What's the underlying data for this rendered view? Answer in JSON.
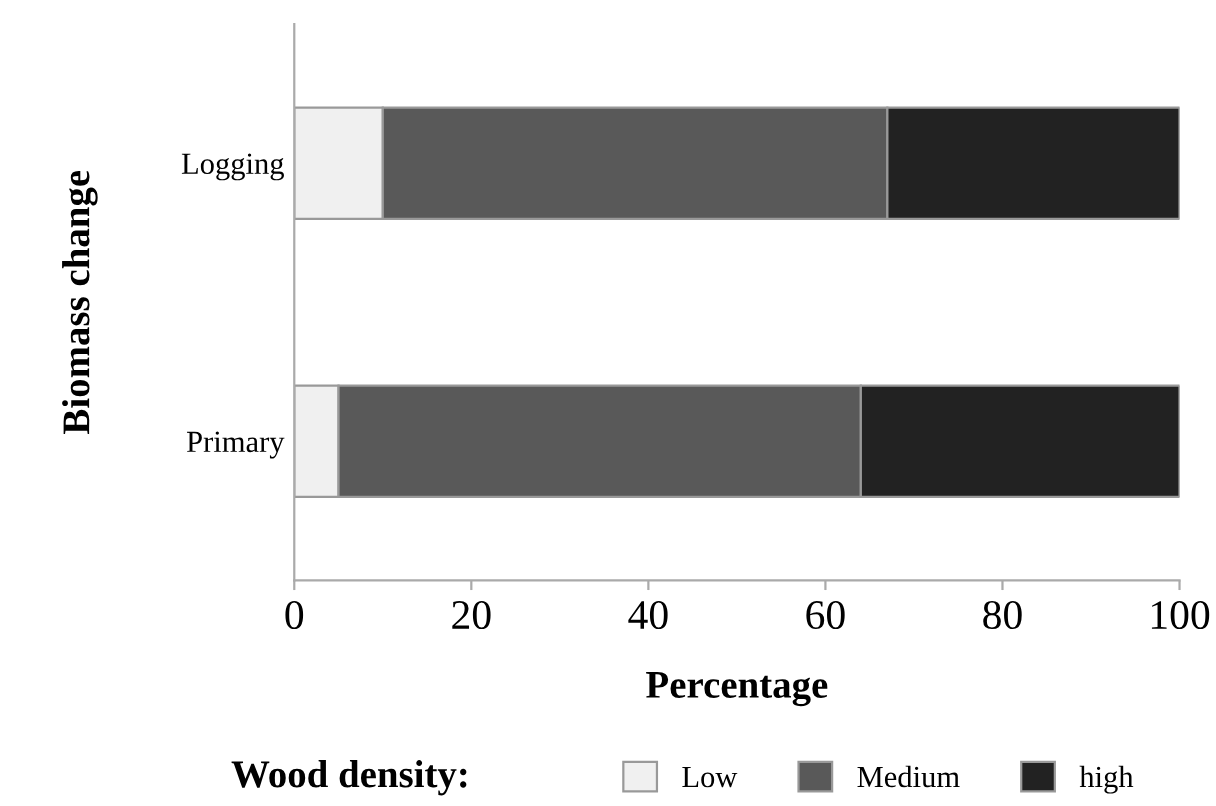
{
  "chart_data": {
    "type": "bar",
    "orientation": "horizontal",
    "stacked": true,
    "xlabel": "Percentage",
    "ylabel": "Biomass change",
    "legend_title": "Wood density:",
    "legend": "bottom",
    "categories": [
      "Logging",
      "Primary"
    ],
    "series": [
      {
        "name": "Low",
        "color": "#f0f0f0",
        "values": [
          10,
          5
        ]
      },
      {
        "name": "Medium",
        "color": "#595959",
        "values": [
          57,
          59
        ]
      },
      {
        "name": "high",
        "color": "#222222",
        "values": [
          33,
          36
        ]
      }
    ],
    "xlim": [
      0,
      100
    ],
    "xticks": [
      0,
      20,
      40,
      60,
      80,
      100
    ],
    "grid": false
  }
}
